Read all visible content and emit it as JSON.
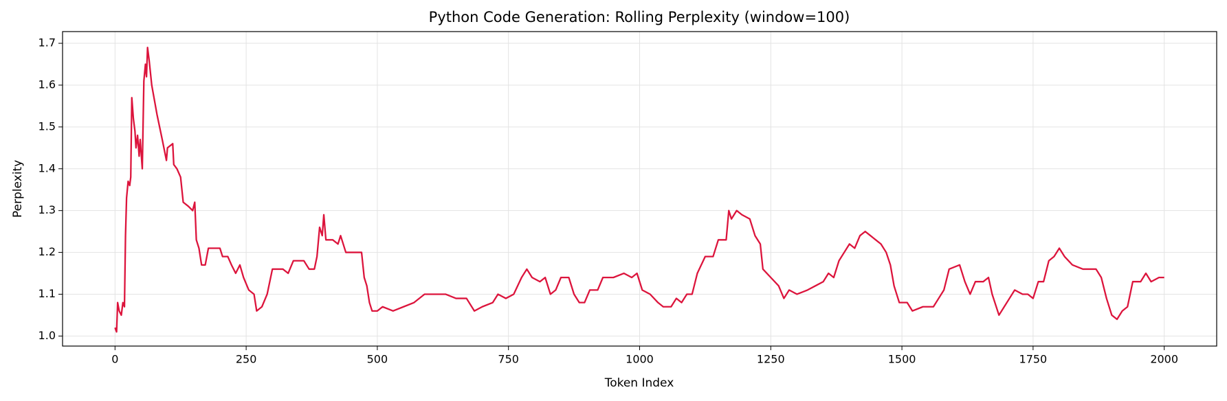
{
  "chart_data": {
    "type": "line",
    "title": "Python Code Generation: Rolling Perplexity (window=100)",
    "x_label": "Token Index",
    "y_label": "Perplexity",
    "xlim": [
      -100,
      2100
    ],
    "ylim": [
      0.976,
      1.728
    ],
    "xticks": [
      0,
      250,
      500,
      750,
      1000,
      1250,
      1500,
      1750,
      2000
    ],
    "yticks": [
      {
        "value": 1,
        "label": "1.0"
      },
      1.1,
      1.2,
      1.3,
      1.4,
      1.5,
      1.6,
      1.7
    ],
    "grid": true,
    "series": [
      {
        "color": "#dc143c",
        "x": [
          0,
          3,
          5,
          8,
          12,
          15,
          18,
          20,
          22,
          25,
          28,
          30,
          32,
          35,
          38,
          40,
          43,
          46,
          48,
          52,
          55,
          58,
          60,
          62,
          65,
          70,
          80,
          90,
          98,
          100,
          110,
          112,
          118,
          125,
          130,
          140,
          148,
          152,
          155,
          160,
          165,
          172,
          178,
          190,
          200,
          205,
          215,
          222,
          230,
          238,
          245,
          255,
          265,
          270,
          280,
          290,
          300,
          320,
          330,
          340,
          360,
          370,
          380,
          385,
          390,
          395,
          398,
          402,
          415,
          425,
          430,
          440,
          460,
          470,
          475,
          480,
          485,
          490,
          500,
          510,
          530,
          550,
          570,
          590,
          610,
          630,
          650,
          670,
          685,
          700,
          720,
          730,
          745,
          760,
          775,
          785,
          795,
          810,
          820,
          830,
          840,
          850,
          865,
          875,
          885,
          895,
          905,
          920,
          930,
          950,
          970,
          985,
          995,
          1005,
          1020,
          1035,
          1045,
          1060,
          1070,
          1080,
          1090,
          1100,
          1110,
          1125,
          1140,
          1150,
          1165,
          1170,
          1175,
          1185,
          1195,
          1210,
          1220,
          1230,
          1235,
          1250,
          1265,
          1275,
          1285,
          1300,
          1320,
          1335,
          1350,
          1360,
          1370,
          1380,
          1390,
          1400,
          1410,
          1420,
          1430,
          1440,
          1450,
          1460,
          1470,
          1478,
          1485,
          1495,
          1510,
          1520,
          1540,
          1560,
          1570,
          1580,
          1590,
          1610,
          1620,
          1630,
          1640,
          1655,
          1665,
          1672,
          1685,
          1695,
          1705,
          1715,
          1730,
          1740,
          1750,
          1760,
          1770,
          1780,
          1790,
          1800,
          1810,
          1825,
          1845,
          1860,
          1870,
          1880,
          1890,
          1900,
          1910,
          1920,
          1930,
          1940,
          1955,
          1965,
          1975,
          1990,
          2000
        ],
        "values": [
          1.02,
          1.01,
          1.08,
          1.06,
          1.05,
          1.08,
          1.07,
          1.24,
          1.33,
          1.37,
          1.36,
          1.38,
          1.57,
          1.52,
          1.49,
          1.45,
          1.48,
          1.43,
          1.47,
          1.4,
          1.61,
          1.65,
          1.62,
          1.69,
          1.66,
          1.6,
          1.53,
          1.47,
          1.42,
          1.45,
          1.46,
          1.41,
          1.4,
          1.38,
          1.32,
          1.31,
          1.3,
          1.32,
          1.23,
          1.21,
          1.17,
          1.17,
          1.21,
          1.21,
          1.21,
          1.19,
          1.19,
          1.17,
          1.15,
          1.17,
          1.14,
          1.11,
          1.1,
          1.06,
          1.07,
          1.1,
          1.16,
          1.16,
          1.15,
          1.18,
          1.18,
          1.16,
          1.16,
          1.19,
          1.26,
          1.24,
          1.29,
          1.23,
          1.23,
          1.22,
          1.24,
          1.2,
          1.2,
          1.2,
          1.14,
          1.12,
          1.08,
          1.06,
          1.06,
          1.07,
          1.06,
          1.07,
          1.08,
          1.1,
          1.1,
          1.1,
          1.09,
          1.09,
          1.06,
          1.07,
          1.08,
          1.1,
          1.09,
          1.1,
          1.14,
          1.16,
          1.14,
          1.13,
          1.14,
          1.1,
          1.11,
          1.14,
          1.14,
          1.1,
          1.08,
          1.08,
          1.11,
          1.11,
          1.14,
          1.14,
          1.15,
          1.14,
          1.15,
          1.11,
          1.1,
          1.08,
          1.07,
          1.07,
          1.09,
          1.08,
          1.1,
          1.1,
          1.15,
          1.19,
          1.19,
          1.23,
          1.23,
          1.3,
          1.28,
          1.3,
          1.29,
          1.28,
          1.24,
          1.22,
          1.16,
          1.14,
          1.12,
          1.09,
          1.11,
          1.1,
          1.11,
          1.12,
          1.13,
          1.15,
          1.14,
          1.18,
          1.2,
          1.22,
          1.21,
          1.24,
          1.25,
          1.24,
          1.23,
          1.22,
          1.2,
          1.17,
          1.12,
          1.08,
          1.08,
          1.06,
          1.07,
          1.07,
          1.09,
          1.11,
          1.16,
          1.17,
          1.13,
          1.1,
          1.13,
          1.13,
          1.14,
          1.1,
          1.05,
          1.07,
          1.09,
          1.11,
          1.1,
          1.1,
          1.09,
          1.13,
          1.13,
          1.18,
          1.19,
          1.21,
          1.19,
          1.17,
          1.16,
          1.16,
          1.16,
          1.14,
          1.09,
          1.05,
          1.04,
          1.06,
          1.07,
          1.13,
          1.13,
          1.15,
          1.13,
          1.14,
          1.14
        ]
      }
    ]
  }
}
